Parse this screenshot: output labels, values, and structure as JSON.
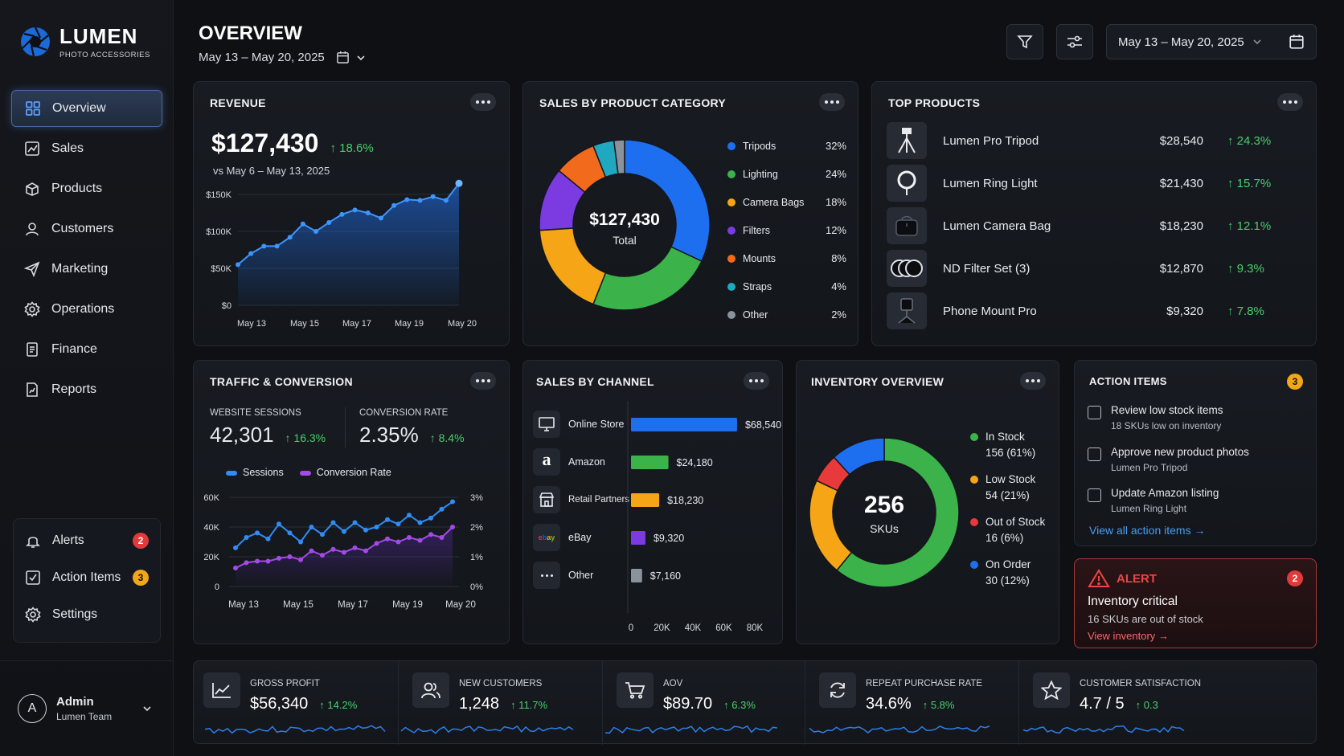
{
  "brand": {
    "name": "LUMEN",
    "tagline": "PHOTO ACCESSORIES"
  },
  "nav": [
    {
      "label": "Overview",
      "icon": "grid-icon",
      "active": true
    },
    {
      "label": "Sales",
      "icon": "chart-icon"
    },
    {
      "label": "Products",
      "icon": "box-icon"
    },
    {
      "label": "Customers",
      "icon": "user-icon"
    },
    {
      "label": "Marketing",
      "icon": "send-icon"
    },
    {
      "label": "Operations",
      "icon": "gear-icon"
    },
    {
      "label": "Finance",
      "icon": "document-icon"
    },
    {
      "label": "Reports",
      "icon": "report-icon"
    }
  ],
  "side": {
    "alerts": {
      "label": "Alerts",
      "count": "2"
    },
    "action_items": {
      "label": "Action Items",
      "count": "3"
    },
    "settings": {
      "label": "Settings"
    }
  },
  "user": {
    "initial": "A",
    "name": "Admin",
    "team": "Lumen Team"
  },
  "header": {
    "title": "OVERVIEW",
    "date_range": "May 13 – May 20, 2025",
    "picker_label": "May 13 – May 20, 2025"
  },
  "revenue": {
    "title": "REVENUE",
    "value": "$127,430",
    "change": "18.6%",
    "compare": "vs May 6 – May 13, 2025",
    "chart_data": {
      "type": "area",
      "y_ticks": [
        "$150K",
        "$100K",
        "$50K",
        "$0"
      ],
      "x_ticks": [
        "May 13",
        "May 15",
        "May 17",
        "May 19",
        "May 20"
      ],
      "ylim": [
        0,
        150000
      ],
      "values": [
        55000,
        70000,
        80000,
        80000,
        92000,
        110000,
        100000,
        112000,
        123000,
        129000,
        125000,
        118000,
        135000,
        143000,
        142000,
        147000,
        142000,
        165000
      ]
    }
  },
  "category": {
    "title": "SALES BY PRODUCT CATEGORY",
    "center_value": "$127,430",
    "center_label": "Total",
    "chart_data": {
      "type": "pie",
      "labels": [
        "Tripods",
        "Lighting",
        "Camera Bags",
        "Filters",
        "Mounts",
        "Straps",
        "Other"
      ],
      "values": [
        32,
        24,
        18,
        12,
        8,
        4,
        2
      ],
      "display": [
        "32%",
        "24%",
        "18%",
        "12%",
        "8%",
        "4%",
        "2%"
      ],
      "colors": [
        "#1e6ff0",
        "#3bb34a",
        "#f5a516",
        "#7b3be0",
        "#f26a1b",
        "#1fa8c0",
        "#8a929c"
      ]
    }
  },
  "top_products": {
    "title": "TOP PRODUCTS",
    "items": [
      {
        "name": "Lumen Pro Tripod",
        "value": "$28,540",
        "change": "24.3%",
        "icon": "tripod-icon"
      },
      {
        "name": "Lumen Ring Light",
        "value": "$21,430",
        "change": "15.7%",
        "icon": "ring-light-icon"
      },
      {
        "name": "Lumen Camera Bag",
        "value": "$18,230",
        "change": "12.1%",
        "icon": "camera-bag-icon"
      },
      {
        "name": "ND Filter Set (3)",
        "value": "$12,870",
        "change": "9.3%",
        "icon": "filter-set-icon"
      },
      {
        "name": "Phone Mount Pro",
        "value": "$9,320",
        "change": "7.8%",
        "icon": "phone-mount-icon"
      }
    ]
  },
  "traffic": {
    "title": "TRAFFIC & CONVERSION",
    "sessions": {
      "label": "WEBSITE SESSIONS",
      "value": "42,301",
      "change": "16.3%"
    },
    "conversion": {
      "label": "CONVERSION RATE",
      "value": "2.35%",
      "change": "8.4%"
    },
    "chart_data": {
      "type": "line",
      "x_ticks": [
        "May 13",
        "May 15",
        "May 17",
        "May 19",
        "May 20"
      ],
      "y_left": [
        "60K",
        "40K",
        "20K",
        "0"
      ],
      "y_right": [
        "3%",
        "2%",
        "1%",
        "0%"
      ],
      "series": [
        {
          "name": "Sessions",
          "color": "#2f8df5",
          "axis": "left",
          "values": [
            26000,
            33000,
            36000,
            32000,
            42000,
            36000,
            30000,
            40000,
            35000,
            43000,
            37000,
            43000,
            38000,
            40000,
            45000,
            42000,
            48000,
            43000,
            46000,
            52000,
            57000
          ]
        },
        {
          "name": "Conversion Rate",
          "color": "#a44ae8",
          "axis": "right",
          "values": [
            0.62,
            0.8,
            0.85,
            0.85,
            0.95,
            1.0,
            0.9,
            1.2,
            1.05,
            1.25,
            1.15,
            1.3,
            1.2,
            1.45,
            1.6,
            1.5,
            1.65,
            1.55,
            1.75,
            1.65,
            2.0
          ]
        }
      ]
    }
  },
  "channel": {
    "title": "SALES BY CHANNEL",
    "chart_data": {
      "type": "bar",
      "categories": [
        "Online Store",
        "Amazon",
        "Retail Partners",
        "eBay",
        "Other"
      ],
      "values": [
        68540,
        24180,
        18230,
        9320,
        7160
      ],
      "labels": [
        "$68,540",
        "$24,180",
        "$18,230",
        "$9,320",
        "$7,160"
      ],
      "colors": [
        "#1e6ff0",
        "#3bb34a",
        "#f5a516",
        "#7b3be0",
        "#8a929c"
      ],
      "x_ticks": [
        "0",
        "20K",
        "40K",
        "60K",
        "80K"
      ],
      "xlim": [
        0,
        80000
      ]
    },
    "icons": [
      "monitor-icon",
      "amazon-icon",
      "store-icon",
      "ebay-icon",
      "more-icon"
    ]
  },
  "inventory": {
    "title": "INVENTORY OVERVIEW",
    "center_value": "256",
    "center_label": "SKUs",
    "chart_data": {
      "type": "pie",
      "labels": [
        "In Stock",
        "Low Stock",
        "Out of Stock",
        "On Order"
      ],
      "values": [
        156,
        54,
        16,
        30
      ],
      "display": [
        "156 (61%)",
        "54 (21%)",
        "16 (6%)",
        "30 (12%)"
      ],
      "colors": [
        "#3bb34a",
        "#f5a516",
        "#e83a3a",
        "#1e6ff0"
      ]
    }
  },
  "actions": {
    "title": "ACTION ITEMS",
    "count": "3",
    "items": [
      {
        "title": "Review low stock items",
        "sub": "18 SKUs low on inventory"
      },
      {
        "title": "Approve new product photos",
        "sub": "Lumen Pro Tripod"
      },
      {
        "title": "Update Amazon listing",
        "sub": "Lumen Ring Light"
      }
    ],
    "link": "View all action items"
  },
  "alert": {
    "title": "ALERT",
    "count": "2",
    "heading": "Inventory critical",
    "sub": "16 SKUs are out of stock",
    "link": "View inventory"
  },
  "kpis": [
    {
      "label": "GROSS PROFIT",
      "value": "$56,340",
      "change": "14.2%",
      "icon": "trend-icon"
    },
    {
      "label": "NEW CUSTOMERS",
      "value": "1,248",
      "change": "11.7%",
      "icon": "users-icon"
    },
    {
      "label": "AOV",
      "value": "$89.70",
      "change": "6.3%",
      "icon": "cart-icon"
    },
    {
      "label": "REPEAT PURCHASE RATE",
      "value": "34.6%",
      "change": "5.8%",
      "icon": "refresh-icon"
    },
    {
      "label": "CUSTOMER SATISFACTION",
      "value": "4.7 / 5",
      "change": "0.3",
      "icon": "star-icon"
    }
  ]
}
